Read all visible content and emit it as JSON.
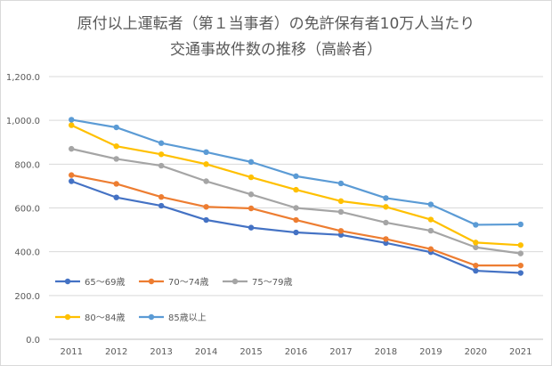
{
  "chart_data": {
    "type": "line",
    "title_line1": "原付以上運転者（第１当事者）の免許保有者10万人当たり",
    "title_line2": "交通事故件数の推移（高齢者）",
    "xlabel": "",
    "ylabel": "",
    "x": [
      "2011",
      "2012",
      "2013",
      "2014",
      "2015",
      "2016",
      "2017",
      "2018",
      "2019",
      "2020",
      "2021"
    ],
    "ylim": [
      0,
      1200
    ],
    "yticks": [
      "0.0",
      "200.0",
      "400.0",
      "600.0",
      "800.0",
      "1,000.0",
      "1,200.0"
    ],
    "grid": true,
    "legend_placement": "bottom-left",
    "series": [
      {
        "name": "65～69歳",
        "color": "#4472c4",
        "values": [
          722,
          648,
          610,
          545,
          510,
          488,
          477,
          440,
          398,
          313,
          303
        ]
      },
      {
        "name": "70～74歳",
        "color": "#ed7d31",
        "values": [
          750,
          710,
          650,
          605,
          598,
          545,
          495,
          458,
          412,
          337,
          337
        ]
      },
      {
        "name": "75～79歳",
        "color": "#a5a5a5",
        "values": [
          870,
          824,
          793,
          722,
          662,
          600,
          582,
          533,
          496,
          420,
          392
        ]
      },
      {
        "name": "80～84歳",
        "color": "#ffc000",
        "values": [
          978,
          882,
          845,
          800,
          740,
          683,
          631,
          605,
          547,
          442,
          430
        ]
      },
      {
        "name": "85歳以上",
        "color": "#5b9bd5",
        "values": [
          1003,
          968,
          896,
          855,
          810,
          745,
          712,
          645,
          616,
          523,
          525
        ]
      }
    ]
  }
}
